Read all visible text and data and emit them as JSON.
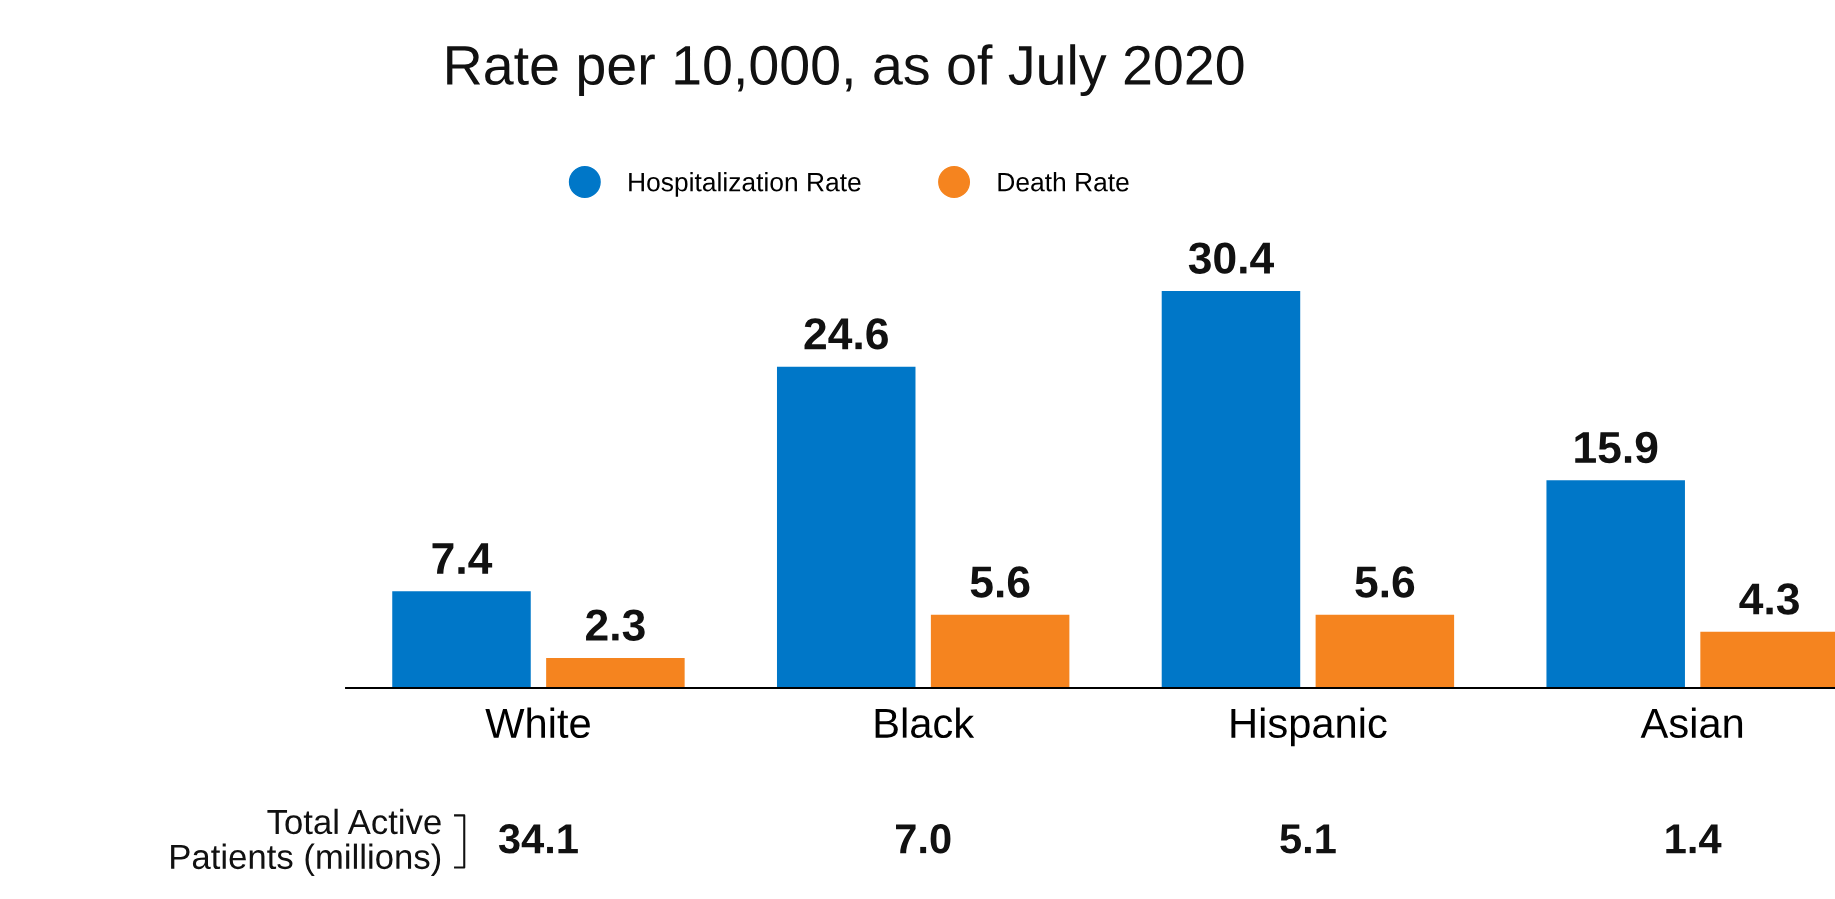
{
  "chart_data": {
    "type": "bar",
    "subtitle": "Rate per 10,000, as of July 2020",
    "categories": [
      "White",
      "Black",
      "Hispanic",
      "Asian"
    ],
    "series": [
      {
        "name": "Hospitalization Rate",
        "color": "#0077c8",
        "values": [
          7.4,
          24.6,
          30.4,
          15.9
        ]
      },
      {
        "name": "Death Rate",
        "color": "#f5841f",
        "values": [
          2.3,
          5.6,
          5.6,
          4.3
        ]
      }
    ],
    "data_labels": true,
    "legend": "top",
    "grid": false,
    "tick_labels": "x",
    "annotations": [
      "Total Active\nPatients (millions)",
      "34.1",
      "7.0",
      "5.1",
      "1.4"
    ]
  }
}
